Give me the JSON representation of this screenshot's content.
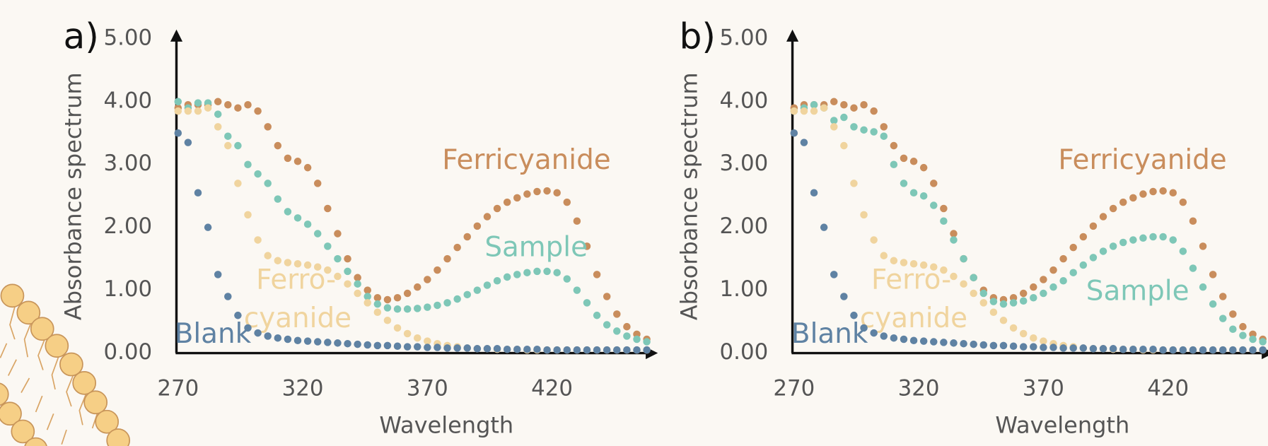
{
  "chart_data": [
    {
      "type": "scatter",
      "panel_label": "a)",
      "x_label": "Wavelength",
      "y_label": "Absorbance spectrum",
      "xlim": [
        270,
        460
      ],
      "ylim": [
        0,
        5
      ],
      "xticks": [
        270,
        320,
        370,
        420
      ],
      "yticks": [
        {
          "value": 0,
          "label": "0.00"
        },
        {
          "value": 1,
          "label": "1.00"
        },
        {
          "value": 2,
          "label": "2.00"
        },
        {
          "value": 3,
          "label": "3.00"
        },
        {
          "value": 4,
          "label": "4.00"
        },
        {
          "value": 5,
          "label": "5.00"
        }
      ],
      "x": [
        270,
        274,
        278,
        282,
        286,
        290,
        294,
        298,
        302,
        306,
        310,
        314,
        318,
        322,
        326,
        330,
        334,
        338,
        342,
        346,
        350,
        354,
        358,
        362,
        366,
        370,
        374,
        378,
        382,
        386,
        390,
        394,
        398,
        402,
        406,
        410,
        414,
        418,
        422,
        426,
        430,
        434,
        438,
        442,
        446,
        450,
        454,
        458
      ],
      "series": [
        {
          "name": "Ferricyanide",
          "color": "#c98d5c",
          "values": [
            3.9,
            3.95,
            3.95,
            3.95,
            4.0,
            3.95,
            3.9,
            3.95,
            3.85,
            3.6,
            3.3,
            3.1,
            3.05,
            2.95,
            2.7,
            2.3,
            1.9,
            1.5,
            1.2,
            1.0,
            0.88,
            0.85,
            0.88,
            0.95,
            1.05,
            1.17,
            1.32,
            1.5,
            1.68,
            1.85,
            2.02,
            2.17,
            2.3,
            2.4,
            2.47,
            2.53,
            2.57,
            2.58,
            2.55,
            2.4,
            2.1,
            1.7,
            1.25,
            0.9,
            0.62,
            0.42,
            0.3,
            0.22
          ]
        },
        {
          "name": "Sample",
          "color": "#7ec7b7",
          "values": [
            4.0,
            3.9,
            3.98,
            3.98,
            3.8,
            3.45,
            3.3,
            3.0,
            2.85,
            2.7,
            2.45,
            2.25,
            2.15,
            2.05,
            1.9,
            1.7,
            1.5,
            1.3,
            1.1,
            0.9,
            0.78,
            0.72,
            0.7,
            0.7,
            0.71,
            0.73,
            0.76,
            0.8,
            0.86,
            0.93,
            1.0,
            1.08,
            1.15,
            1.21,
            1.25,
            1.28,
            1.3,
            1.3,
            1.28,
            1.18,
            1.0,
            0.8,
            0.6,
            0.45,
            0.35,
            0.27,
            0.22,
            0.18
          ]
        },
        {
          "name": [
            "Ferro-",
            "cyanide"
          ],
          "color": "#f0d49e",
          "values": [
            3.85,
            3.85,
            3.85,
            3.9,
            3.6,
            3.3,
            2.7,
            2.2,
            1.8,
            1.55,
            1.47,
            1.44,
            1.42,
            1.4,
            1.37,
            1.32,
            1.22,
            1.1,
            0.95,
            0.8,
            0.65,
            0.52,
            0.4,
            0.31,
            0.24,
            0.19,
            0.15,
            0.12,
            0.1,
            0.08,
            0.07,
            0.07,
            0.06,
            0.06,
            0.06,
            0.05,
            0.05,
            0.05,
            0.05,
            0.05,
            0.05,
            0.05,
            0.05,
            0.05,
            0.05,
            0.05,
            0.05,
            0.05
          ]
        },
        {
          "name": "Blank",
          "color": "#5f82a3",
          "values": [
            3.5,
            3.35,
            2.55,
            2.0,
            1.25,
            0.9,
            0.6,
            0.4,
            0.32,
            0.27,
            0.24,
            0.22,
            0.2,
            0.19,
            0.18,
            0.17,
            0.16,
            0.15,
            0.14,
            0.13,
            0.12,
            0.12,
            0.11,
            0.1,
            0.1,
            0.09,
            0.09,
            0.08,
            0.08,
            0.08,
            0.07,
            0.07,
            0.07,
            0.06,
            0.06,
            0.06,
            0.06,
            0.05,
            0.05,
            0.05,
            0.05,
            0.05,
            0.05,
            0.05,
            0.05,
            0.05,
            0.05,
            0.05
          ]
        }
      ]
    },
    {
      "type": "scatter",
      "panel_label": "b)",
      "x_label": "Wavelength",
      "y_label": "Absorbance spectrum",
      "xlim": [
        270,
        460
      ],
      "ylim": [
        0,
        5
      ],
      "xticks": [
        270,
        320,
        370,
        420
      ],
      "yticks": [
        {
          "value": 0,
          "label": "0.00"
        },
        {
          "value": 1,
          "label": "1.00"
        },
        {
          "value": 2,
          "label": "2.00"
        },
        {
          "value": 3,
          "label": "3.00"
        },
        {
          "value": 4,
          "label": "4.00"
        },
        {
          "value": 5,
          "label": "5.00"
        }
      ],
      "x": [
        270,
        274,
        278,
        282,
        286,
        290,
        294,
        298,
        302,
        306,
        310,
        314,
        318,
        322,
        326,
        330,
        334,
        338,
        342,
        346,
        350,
        354,
        358,
        362,
        366,
        370,
        374,
        378,
        382,
        386,
        390,
        394,
        398,
        402,
        406,
        410,
        414,
        418,
        422,
        426,
        430,
        434,
        438,
        442,
        446,
        450,
        454,
        458
      ],
      "series": [
        {
          "name": "Ferricyanide",
          "color": "#c98d5c",
          "values": [
            3.9,
            3.95,
            3.95,
            3.95,
            4.0,
            3.95,
            3.9,
            3.95,
            3.85,
            3.6,
            3.3,
            3.1,
            3.05,
            2.95,
            2.7,
            2.3,
            1.9,
            1.5,
            1.2,
            1.0,
            0.88,
            0.85,
            0.88,
            0.95,
            1.05,
            1.17,
            1.32,
            1.5,
            1.68,
            1.85,
            2.02,
            2.17,
            2.3,
            2.4,
            2.47,
            2.53,
            2.57,
            2.58,
            2.55,
            2.4,
            2.1,
            1.7,
            1.25,
            0.9,
            0.62,
            0.42,
            0.3,
            0.22
          ]
        },
        {
          "name": "Sample",
          "color": "#7ec7b7",
          "values": [
            3.85,
            3.9,
            3.95,
            3.9,
            3.7,
            3.75,
            3.6,
            3.55,
            3.52,
            3.45,
            3.0,
            2.7,
            2.55,
            2.5,
            2.35,
            2.1,
            1.8,
            1.5,
            1.2,
            0.95,
            0.82,
            0.78,
            0.8,
            0.83,
            0.88,
            0.95,
            1.05,
            1.15,
            1.28,
            1.4,
            1.52,
            1.62,
            1.7,
            1.76,
            1.8,
            1.83,
            1.85,
            1.85,
            1.8,
            1.62,
            1.35,
            1.05,
            0.78,
            0.55,
            0.38,
            0.28,
            0.22,
            0.18
          ]
        },
        {
          "name": [
            "Ferro-",
            "cyanide"
          ],
          "color": "#f0d49e",
          "values": [
            3.85,
            3.85,
            3.85,
            3.9,
            3.6,
            3.3,
            2.7,
            2.2,
            1.8,
            1.55,
            1.47,
            1.44,
            1.42,
            1.4,
            1.37,
            1.32,
            1.22,
            1.1,
            0.95,
            0.8,
            0.65,
            0.52,
            0.4,
            0.31,
            0.24,
            0.19,
            0.15,
            0.12,
            0.1,
            0.08,
            0.07,
            0.07,
            0.06,
            0.06,
            0.06,
            0.05,
            0.05,
            0.05,
            0.05,
            0.05,
            0.05,
            0.05,
            0.05,
            0.05,
            0.05,
            0.05,
            0.05,
            0.05
          ]
        },
        {
          "name": "Blank",
          "color": "#5f82a3",
          "values": [
            3.5,
            3.35,
            2.55,
            2.0,
            1.25,
            0.9,
            0.6,
            0.4,
            0.32,
            0.27,
            0.24,
            0.22,
            0.2,
            0.19,
            0.18,
            0.17,
            0.16,
            0.15,
            0.14,
            0.13,
            0.12,
            0.12,
            0.11,
            0.1,
            0.1,
            0.09,
            0.09,
            0.08,
            0.08,
            0.08,
            0.07,
            0.07,
            0.07,
            0.06,
            0.06,
            0.06,
            0.06,
            0.05,
            0.05,
            0.05,
            0.05,
            0.05,
            0.05,
            0.05,
            0.05,
            0.05,
            0.05,
            0.05
          ]
        }
      ]
    }
  ]
}
